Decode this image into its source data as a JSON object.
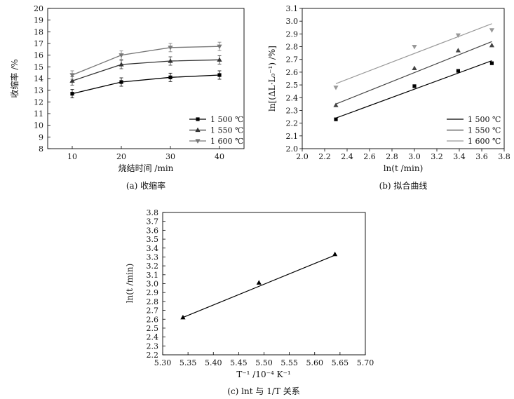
{
  "chart_data": [
    {
      "type": "line",
      "caption": "(a) 收缩率",
      "xlabel": "烧结时间 /min",
      "ylabel": "收缩率 /%",
      "xlim": [
        5,
        45
      ],
      "ylim": [
        8,
        20
      ],
      "xticks": [
        10,
        20,
        30,
        40
      ],
      "yticks": [
        8,
        9,
        10,
        11,
        12,
        13,
        14,
        15,
        16,
        17,
        18,
        19,
        20
      ],
      "legend_position": "bottom-right",
      "x": [
        10,
        20,
        30,
        40
      ],
      "series": [
        {
          "name": "1 500 ℃",
          "marker": "square",
          "color": "#000000",
          "values": [
            12.7,
            13.7,
            14.1,
            14.3
          ]
        },
        {
          "name": "1 550 ℃",
          "marker": "triangle-up",
          "color": "#333333",
          "values": [
            13.8,
            15.2,
            15.5,
            15.6
          ]
        },
        {
          "name": "1 600 ℃",
          "marker": "triangle-down",
          "color": "#777777",
          "values": [
            14.3,
            16.0,
            16.65,
            16.75
          ]
        }
      ]
    },
    {
      "type": "scatter",
      "caption": "(b) 拟合曲线",
      "xlabel": "ln(t /min)",
      "ylabel": "ln[(ΔL·L₀⁻¹) /%]",
      "xlim": [
        2.0,
        3.8
      ],
      "ylim": [
        2.0,
        3.1
      ],
      "xticks": [
        2.0,
        2.2,
        2.4,
        2.6,
        2.8,
        3.0,
        3.2,
        3.4,
        3.6,
        3.8
      ],
      "yticks": [
        2.0,
        2.1,
        2.2,
        2.3,
        2.4,
        2.5,
        2.6,
        2.7,
        2.8,
        2.9,
        3.0,
        3.1
      ],
      "legend_position": "bottom-right",
      "x": [
        2.3,
        3.0,
        3.39,
        3.69
      ],
      "series": [
        {
          "name": "1 500 ℃",
          "marker": "square",
          "color": "#000000",
          "values": [
            2.23,
            2.49,
            2.61,
            2.67
          ],
          "fit": [
            [
              2.3,
              2.24
            ],
            [
              3.69,
              2.69
            ]
          ]
        },
        {
          "name": "1 550 ℃",
          "marker": "triangle-up",
          "color": "#444444",
          "values": [
            2.34,
            2.63,
            2.77,
            2.81
          ],
          "fit": [
            [
              2.3,
              2.35
            ],
            [
              3.69,
              2.84
            ]
          ]
        },
        {
          "name": "1 600 ℃",
          "marker": "triangle-down",
          "color": "#999999",
          "values": [
            2.48,
            2.8,
            2.89,
            2.93
          ],
          "fit": [
            [
              2.3,
              2.51
            ],
            [
              3.69,
              2.98
            ]
          ]
        }
      ]
    },
    {
      "type": "scatter",
      "caption": "(c) lnt 与 1/T 关系",
      "xlabel": "T⁻¹ /10⁻⁴ K⁻¹",
      "ylabel": "ln(t /min)",
      "xlim": [
        5.3,
        5.7
      ],
      "ylim": [
        2.2,
        3.8
      ],
      "xticks": [
        5.3,
        5.35,
        5.4,
        5.45,
        5.5,
        5.55,
        5.6,
        5.65,
        5.7
      ],
      "yticks": [
        2.2,
        2.3,
        2.4,
        2.5,
        2.6,
        2.7,
        2.8,
        2.9,
        3.0,
        3.1,
        3.2,
        3.3,
        3.4,
        3.5,
        3.6,
        3.7,
        3.8
      ],
      "x": [
        5.34,
        5.49,
        5.64
      ],
      "series": [
        {
          "marker": "triangle-up",
          "color": "#000000",
          "values": [
            2.62,
            3.01,
            3.33
          ],
          "fit": [
            [
              5.34,
              2.62
            ],
            [
              5.64,
              3.32
            ]
          ]
        }
      ]
    }
  ]
}
